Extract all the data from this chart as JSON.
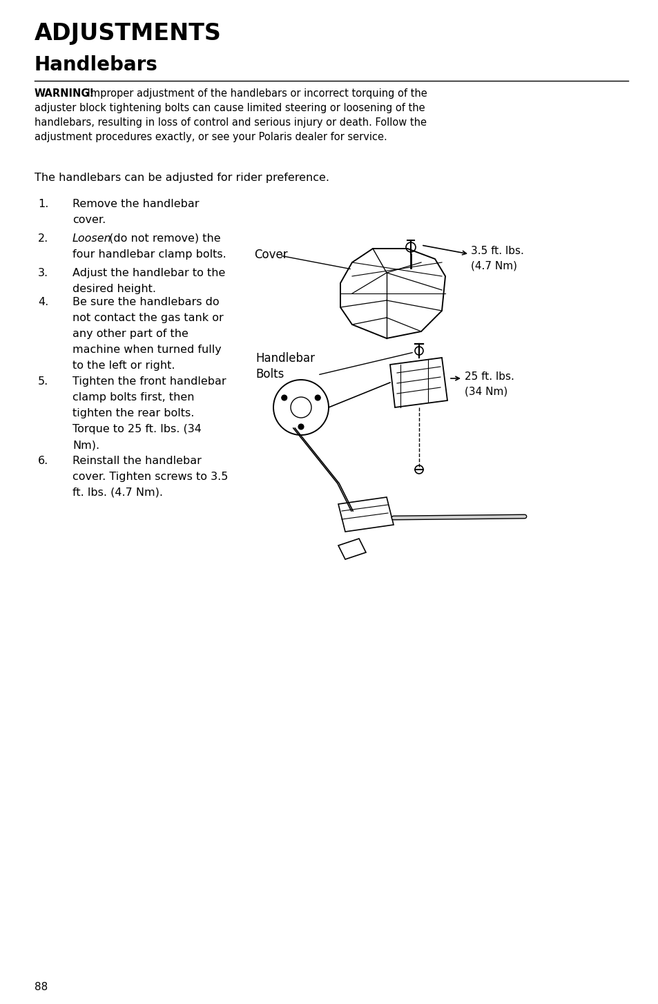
{
  "title1": "ADJUSTMENTS",
  "title2": "Handlebars",
  "warning_bold": "WARNING!",
  "warning_rest": " Improper adjustment of the handlebars or incorrect torquing of the",
  "warning_line2": "adjuster block tightening bolts can cause limited steering or loosening of the",
  "warning_line3": "handlebars, resulting in loss of control and serious injury or death. Follow the",
  "warning_line4": "adjustment procedures exactly, or see your Polaris dealer for service.",
  "intro": "The handlebars can be adjusted for rider preference.",
  "cover_label": "Cover",
  "cover_torque1": "3.5 ft. lbs.",
  "cover_torque2": "(4.7 Nm)",
  "hb_label1": "Handlebar",
  "hb_label2": "Bolts",
  "hb_torque1": "25 ft. lbs.",
  "hb_torque2": "(34 Nm)",
  "page_number": "88",
  "bg_color": "#ffffff",
  "text_color": "#000000",
  "steps": [
    {
      "num": "1.",
      "lines": [
        "Remove the handlebar",
        "cover."
      ],
      "italic_first": false
    },
    {
      "num": "2.",
      "lines": [
        "Loosen (do not remove) the",
        "four handlebar clamp bolts."
      ],
      "italic_first": true,
      "italic_word": "Loosen",
      "rest": " (do not remove) the"
    },
    {
      "num": "3.",
      "lines": [
        "Adjust the handlebar to the",
        "desired height."
      ],
      "italic_first": false
    },
    {
      "num": "4.",
      "lines": [
        "Be sure the handlebars do",
        "not contact the gas tank or",
        "any other part of the",
        "machine when turned fully",
        "to the left or right."
      ],
      "italic_first": false
    },
    {
      "num": "5.",
      "lines": [
        "Tighten the front handlebar",
        "clamp bolts first, then",
        "tighten the rear bolts.",
        "Torque to 25 ft. lbs. (34",
        "Nm)."
      ],
      "italic_first": false
    },
    {
      "num": "6.",
      "lines": [
        "Reinstall the handlebar",
        "cover. Tighten screws to 3.5",
        "ft. lbs. (4.7 Nm)."
      ],
      "italic_first": false
    }
  ]
}
